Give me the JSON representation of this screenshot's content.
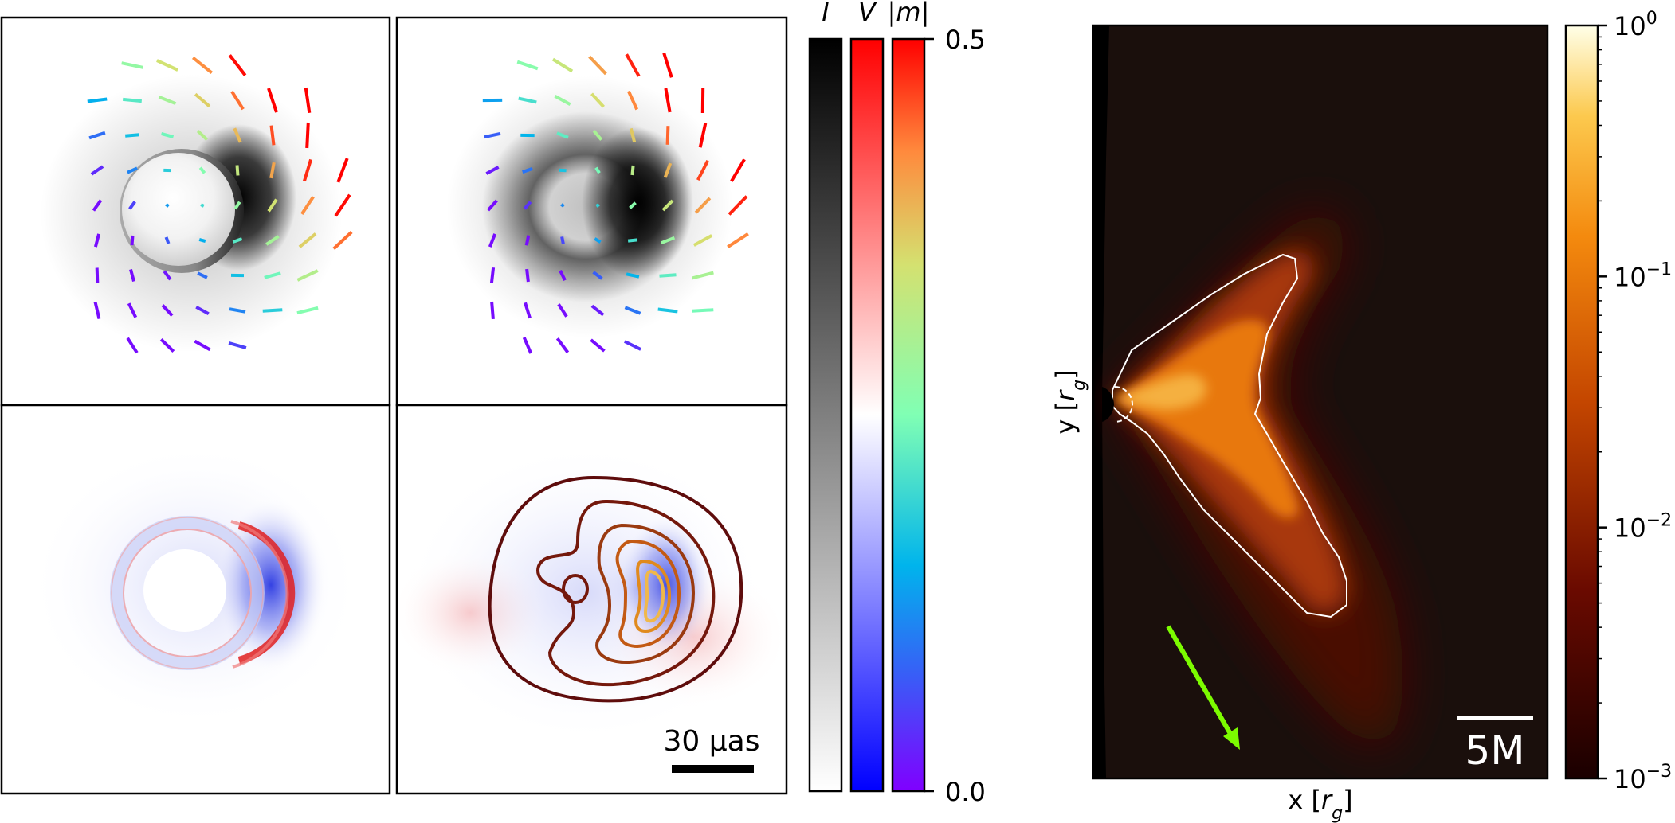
{
  "figure": {
    "panels": [
      "stokes-I-original",
      "stokes-I-blurred",
      "stokes-V-original",
      "stokes-V-blurred"
    ],
    "scalebar_label": "30 μas"
  },
  "colorbars": {
    "labels": {
      "I": "I",
      "V": "V",
      "m": "|m|"
    },
    "max_label": "0.5",
    "min_label": "0.0"
  },
  "emission_map": {
    "xlabel": "x [r_g]",
    "ylabel": "y [r_g]",
    "scalebar_label": "5M",
    "colorbar": {
      "scale": "log",
      "ticks": [
        {
          "value": 1,
          "base": "10",
          "exp": "0"
        },
        {
          "value": 0.1,
          "base": "10",
          "exp": "−1"
        },
        {
          "value": 0.01,
          "base": "10",
          "exp": "−2"
        },
        {
          "value": 0.001,
          "base": "10",
          "exp": "−3"
        }
      ]
    },
    "arrow_color": "#7cfc00",
    "contour_color": "#ffffff"
  },
  "chart_data": {
    "type": "heatmap",
    "title": "",
    "panel_grid": "2x2 polarimetric images + emissivity map",
    "colorbars": [
      {
        "name": "I",
        "range": [
          0.0,
          0.5
        ],
        "colormap": "gray_r"
      },
      {
        "name": "V",
        "range": [
          0.0,
          0.5
        ],
        "colormap": "bwr"
      },
      {
        "name": "|m|",
        "range": [
          0.0,
          0.5
        ],
        "colormap": "rainbow"
      }
    ],
    "emission_colorbar": {
      "range": [
        0.001,
        1
      ],
      "scale": "log",
      "colormap": "afmhot"
    },
    "xlabel": "x [r_g]",
    "ylabel": "y [r_g]"
  }
}
